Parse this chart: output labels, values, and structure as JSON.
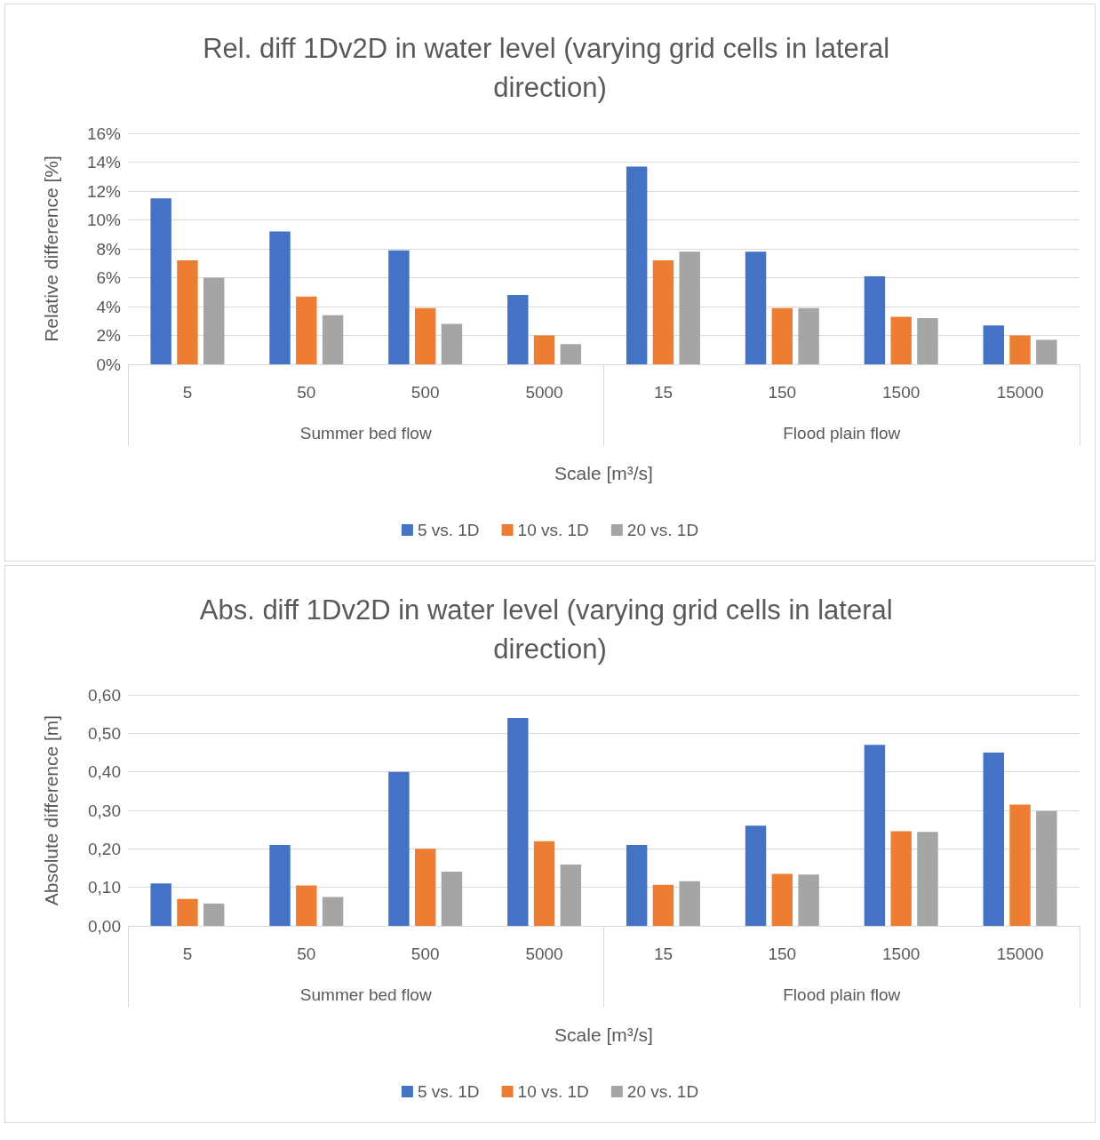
{
  "chart_data": [
    {
      "type": "bar",
      "title": "Rel. diff 1Dv2D in water level (varying grid cells in lateral direction)",
      "xlabel": "Scale [m³/s]",
      "ylabel": "Relative difference [%]",
      "annotations": [
        "Summer bed flow",
        "Flood plain flow"
      ],
      "categories": [
        "5",
        "50",
        "500",
        "5000",
        "15",
        "150",
        "1500",
        "15000"
      ],
      "series": [
        {
          "name": "5 vs. 1D",
          "color": "#4472c4",
          "values": [
            11.5,
            9.2,
            7.9,
            4.8,
            13.7,
            7.8,
            6.1,
            2.7
          ]
        },
        {
          "name": "10 vs. 1D",
          "color": "#ed7d31",
          "values": [
            7.2,
            4.7,
            3.9,
            2.0,
            7.2,
            3.9,
            3.3,
            2.0
          ]
        },
        {
          "name": "20 vs. 1D",
          "color": "#a5a5a5",
          "values": [
            6.0,
            3.4,
            2.8,
            1.4,
            7.8,
            3.9,
            3.2,
            1.7
          ]
        }
      ],
      "ylim": [
        0,
        16
      ],
      "yticks": [
        {
          "value": 0,
          "label": "0%"
        },
        {
          "value": 2,
          "label": "2%"
        },
        {
          "value": 4,
          "label": "4%"
        },
        {
          "value": 6,
          "label": "6%"
        },
        {
          "value": 8,
          "label": "8%"
        },
        {
          "value": 10,
          "label": "10%"
        },
        {
          "value": 12,
          "label": "12%"
        },
        {
          "value": 14,
          "label": "14%"
        },
        {
          "value": 16,
          "label": "16%"
        }
      ],
      "grid": "y",
      "legend": "bottom"
    },
    {
      "type": "bar",
      "title": "Abs. diff 1Dv2D in water level (varying grid cells in lateral direction)",
      "xlabel": "Scale [m³/s]",
      "ylabel": "Absolute difference [m]",
      "annotations": [
        "Summer bed flow",
        "Flood plain flow"
      ],
      "categories": [
        "5",
        "50",
        "500",
        "5000",
        "15",
        "150",
        "1500",
        "15000"
      ],
      "series": [
        {
          "name": "5 vs. 1D",
          "color": "#4472c4",
          "values": [
            0.11,
            0.21,
            0.4,
            0.54,
            0.21,
            0.26,
            0.47,
            0.45
          ]
        },
        {
          "name": "10 vs. 1D",
          "color": "#ed7d31",
          "values": [
            0.07,
            0.105,
            0.2,
            0.22,
            0.107,
            0.135,
            0.246,
            0.315
          ]
        },
        {
          "name": "20 vs. 1D",
          "color": "#a5a5a5",
          "values": [
            0.058,
            0.075,
            0.141,
            0.159,
            0.116,
            0.133,
            0.244,
            0.298
          ]
        }
      ],
      "ylim": [
        0,
        0.6
      ],
      "yticks": [
        {
          "value": 0,
          "label": "0,00"
        },
        {
          "value": 0.1,
          "label": "0,10"
        },
        {
          "value": 0.2,
          "label": "0,20"
        },
        {
          "value": 0.3,
          "label": "0,30"
        },
        {
          "value": 0.4,
          "label": "0,40"
        },
        {
          "value": 0.5,
          "label": "0,50"
        },
        {
          "value": 0.6,
          "label": "0,60"
        }
      ],
      "grid": "y",
      "legend": "bottom"
    }
  ]
}
